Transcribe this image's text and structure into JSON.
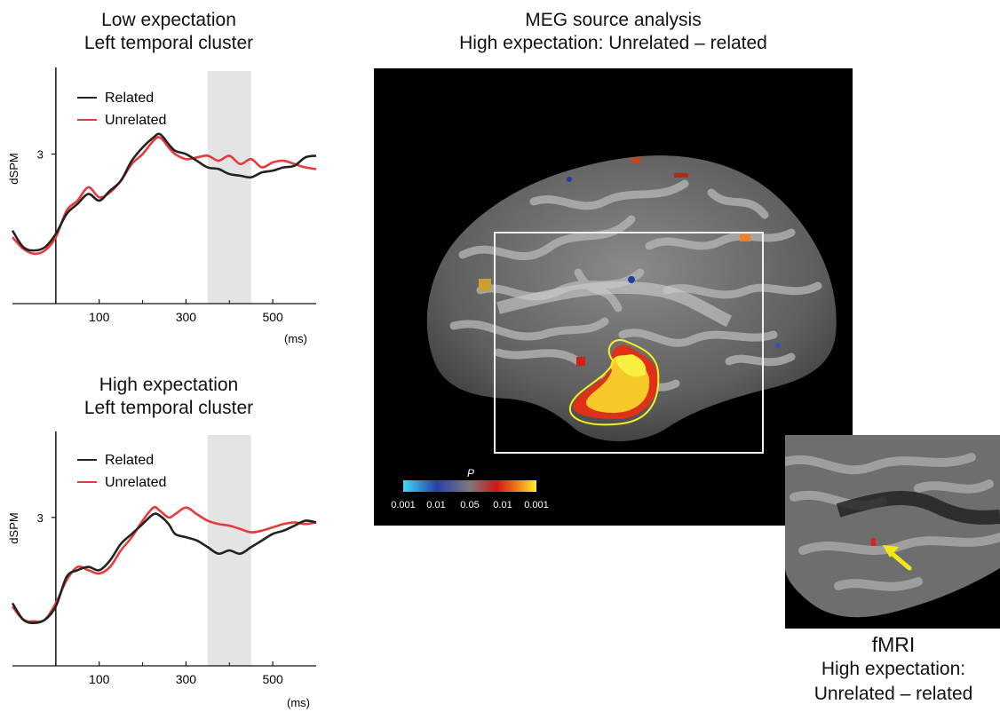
{
  "panels": {
    "low": {
      "title_line1": "Low expectation",
      "title_line2": "Left temporal cluster",
      "ylabel": "dSPM",
      "ytick": "3",
      "xticks": [
        "100",
        "300",
        "500"
      ],
      "xunit": "(ms)",
      "legend": [
        {
          "label": "Related",
          "color": "#222222"
        },
        {
          "label": "Unrelated",
          "color": "#e83a3a"
        }
      ]
    },
    "high": {
      "title_line1": "High expectation",
      "title_line2": "Left temporal cluster",
      "ylabel": "dSPM",
      "ytick": "3",
      "xticks": [
        "100",
        "300",
        "500"
      ],
      "xunit": "(ms)",
      "legend": [
        {
          "label": "Related",
          "color": "#222222"
        },
        {
          "label": "Unrelated",
          "color": "#e83a3a"
        }
      ]
    }
  },
  "meg": {
    "title_line1": "MEG source analysis",
    "title_line2": "High expectation: Unrelated – related",
    "colorbar": {
      "symbol": "P",
      "ticks": [
        "0.001",
        "0.01",
        "0.05",
        "0.01",
        "0.001"
      ]
    }
  },
  "fmri": {
    "line1": "fMRI",
    "line2": "High expectation:",
    "line3": "Unrelated – related"
  },
  "chart_data": [
    {
      "type": "line",
      "title": "Low expectation Left temporal cluster",
      "ylabel": "dSPM",
      "xlabel": "(ms)",
      "xlim": [
        -100,
        600
      ],
      "ylim": [
        -1.5,
        5.5
      ],
      "xticks": [
        100,
        300,
        500
      ],
      "yticks": [
        3
      ],
      "shaded_window_ms": [
        350,
        450
      ],
      "x": [
        -100,
        -75,
        -50,
        -25,
        0,
        25,
        50,
        75,
        100,
        125,
        150,
        175,
        200,
        225,
        240,
        260,
        275,
        300,
        325,
        350,
        375,
        400,
        425,
        450,
        475,
        500,
        525,
        550,
        575,
        600
      ],
      "series": [
        {
          "name": "Related",
          "color": "#222222",
          "values": [
            0.7,
            0.2,
            0.1,
            0.2,
            0.6,
            1.2,
            1.5,
            1.8,
            1.6,
            1.9,
            2.2,
            2.8,
            3.2,
            3.5,
            3.6,
            3.3,
            3.1,
            3.0,
            2.8,
            2.6,
            2.55,
            2.4,
            2.35,
            2.3,
            2.45,
            2.5,
            2.6,
            2.65,
            2.9,
            2.95
          ]
        },
        {
          "name": "Unrelated",
          "color": "#e83a3a",
          "values": [
            0.5,
            0.15,
            0.0,
            0.1,
            0.5,
            1.3,
            1.6,
            2.0,
            1.7,
            1.85,
            2.2,
            2.7,
            3.0,
            3.4,
            3.5,
            3.2,
            3.0,
            2.85,
            2.9,
            2.95,
            2.8,
            2.95,
            2.7,
            2.85,
            2.6,
            2.75,
            2.8,
            2.7,
            2.6,
            2.55
          ]
        }
      ]
    },
    {
      "type": "line",
      "title": "High expectation Left temporal cluster",
      "ylabel": "dSPM",
      "xlabel": "(ms)",
      "xlim": [
        -100,
        600
      ],
      "ylim": [
        -1.5,
        5.5
      ],
      "xticks": [
        100,
        300,
        500
      ],
      "yticks": [
        3
      ],
      "shaded_window_ms": [
        350,
        450
      ],
      "x": [
        -100,
        -75,
        -50,
        -25,
        0,
        25,
        50,
        75,
        100,
        125,
        150,
        175,
        200,
        225,
        240,
        260,
        275,
        300,
        325,
        350,
        375,
        400,
        425,
        450,
        475,
        500,
        525,
        550,
        575,
        600
      ],
      "series": [
        {
          "name": "Related",
          "color": "#222222",
          "values": [
            0.4,
            -0.1,
            -0.2,
            -0.1,
            0.3,
            1.2,
            1.4,
            1.5,
            1.4,
            1.7,
            2.2,
            2.5,
            2.8,
            3.1,
            3.05,
            2.8,
            2.5,
            2.4,
            2.3,
            2.1,
            1.9,
            2.0,
            1.9,
            2.1,
            2.3,
            2.5,
            2.6,
            2.75,
            2.9,
            2.85
          ]
        },
        {
          "name": "Unrelated",
          "color": "#e83a3a",
          "values": [
            0.3,
            -0.1,
            -0.15,
            -0.1,
            0.4,
            1.1,
            1.5,
            1.4,
            1.3,
            1.5,
            2.0,
            2.4,
            2.9,
            3.3,
            3.2,
            3.0,
            3.1,
            3.3,
            3.1,
            2.9,
            2.8,
            2.75,
            2.65,
            2.55,
            2.6,
            2.7,
            2.8,
            2.85,
            2.8,
            2.85
          ]
        }
      ]
    }
  ]
}
